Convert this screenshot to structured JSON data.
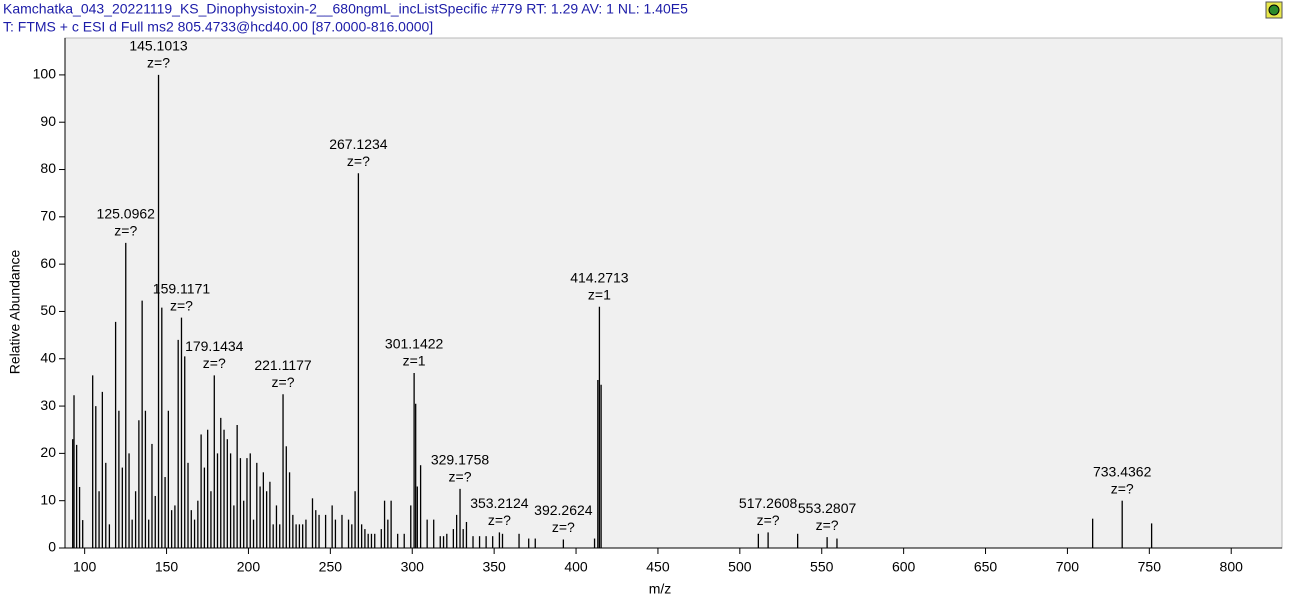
{
  "chart_data": {
    "type": "bar",
    "title": "Kamchatka_043_20221119_KS_Dinophysistoxin-2__680ngmL_incListSpecific #779   RT: 1.29   AV: 1   NL: 1.40E5",
    "subtitle": "T: FTMS + c ESI d Full ms2 805.4733@hcd40.00 [87.0000-816.0000]",
    "x_label": "m/z",
    "y_label": "Relative Abundance",
    "color": "#000000",
    "x": [
      92.7,
      93.5,
      95.1,
      96.9,
      98.8,
      104.9,
      106.8,
      108.8,
      110.8,
      112.9,
      115.1,
      118.9,
      120.9,
      123.0,
      125.0962,
      127.1,
      129.0,
      131.1,
      133.1,
      135.1,
      137.1,
      139.1,
      141.1,
      143.1,
      145.1013,
      147.1,
      149.1,
      151.1,
      153.1,
      155.1,
      157.1,
      159.1171,
      161.1,
      163.1,
      165.1,
      167.1,
      169.1,
      171.1,
      173.1,
      175.1,
      177.1,
      179.1434,
      181.1,
      183.1,
      185.1,
      187.1,
      189.1,
      191.1,
      193.1,
      195.1,
      197.1,
      199.1,
      201.1,
      203.1,
      205.1,
      207.1,
      209.1,
      211.1,
      213.1,
      215.1,
      217.1,
      219.1,
      221.1177,
      223.1,
      225.1,
      227.1,
      229.1,
      231.1,
      233.1,
      235.1,
      239.1,
      241.1,
      243.1,
      247.1,
      251.1,
      253.1,
      257.1,
      261.1,
      263.1,
      265.1,
      267.1234,
      269.1,
      271.1,
      273.1,
      275.1,
      277.1,
      281.1,
      283.1,
      285.1,
      287.1,
      291.1,
      295.1,
      299.1,
      301.1422,
      302.1,
      303.1,
      305.1,
      309.1,
      313.1,
      317.1,
      319.1,
      321.1,
      325.1,
      327.1,
      329.1758,
      331.1,
      333.1,
      337.1,
      341.1,
      345.1,
      349.1,
      353.2124,
      355.1,
      365.2,
      371.1,
      375.1,
      392.2624,
      411.3,
      413.3,
      414.2713,
      415.3,
      511.3,
      517.2608,
      535.3,
      553.2807,
      559.3,
      715.4,
      733.4362,
      751.4
    ],
    "values": [
      23,
      32.3,
      21.8,
      12.9,
      5.9,
      36.5,
      30,
      12,
      33,
      18,
      5,
      47.8,
      29,
      17,
      64.5,
      20,
      6,
      12,
      27,
      52.3,
      29,
      6,
      22,
      11,
      100,
      50.8,
      15,
      29,
      8,
      9,
      44,
      48.7,
      40.5,
      18,
      8,
      6,
      10,
      24,
      17,
      25,
      12,
      36.5,
      20,
      27.5,
      25,
      23,
      20,
      9,
      26,
      19,
      10,
      19,
      20,
      6,
      18,
      13,
      16,
      12,
      14,
      5,
      9,
      5,
      32.5,
      21.5,
      16,
      7,
      5,
      5,
      5,
      6,
      10.5,
      8,
      7,
      7,
      9,
      6,
      7,
      6,
      5,
      12,
      79.2,
      5,
      4,
      3,
      3,
      3,
      4,
      10,
      6,
      10,
      3,
      3,
      9,
      37,
      30.5,
      13,
      17.5,
      6,
      6,
      2.5,
      2.5,
      3,
      4,
      7,
      12.5,
      4,
      5.5,
      2.5,
      2.5,
      2.5,
      2.5,
      3.3,
      3,
      3,
      2,
      2,
      1.8,
      2,
      35.5,
      51,
      34.5,
      3,
      3.3,
      3,
      2.3,
      2,
      6.2,
      10,
      5.2
    ],
    "annotations": [
      {
        "x": 125.0962,
        "z": "z=?"
      },
      {
        "x": 145.1013,
        "z": "z=?"
      },
      {
        "x": 159.1171,
        "z": "z=?"
      },
      {
        "x": 179.1434,
        "z": "z=?"
      },
      {
        "x": 221.1177,
        "z": "z=?"
      },
      {
        "x": 267.1234,
        "z": "z=?"
      },
      {
        "x": 301.1422,
        "z": "z=1"
      },
      {
        "x": 329.1758,
        "z": "z=?"
      },
      {
        "x": 353.2124,
        "z": "z=?"
      },
      {
        "x": 392.2624,
        "z": "z=?"
      },
      {
        "x": 414.2713,
        "z": "z=1"
      },
      {
        "x": 517.2608,
        "z": "z=?"
      },
      {
        "x": 553.2807,
        "z": "z=?"
      },
      {
        "x": 733.4362,
        "z": "z=?"
      }
    ],
    "xlim": [
      88,
      831
    ],
    "ylim": [
      0,
      107.8
    ],
    "xticks": [
      100,
      150,
      200,
      250,
      300,
      350,
      400,
      450,
      500,
      550,
      600,
      650,
      700,
      750,
      800
    ],
    "yticks": [
      0,
      10,
      20,
      30,
      40,
      50,
      60,
      70,
      80,
      90,
      100
    ]
  }
}
